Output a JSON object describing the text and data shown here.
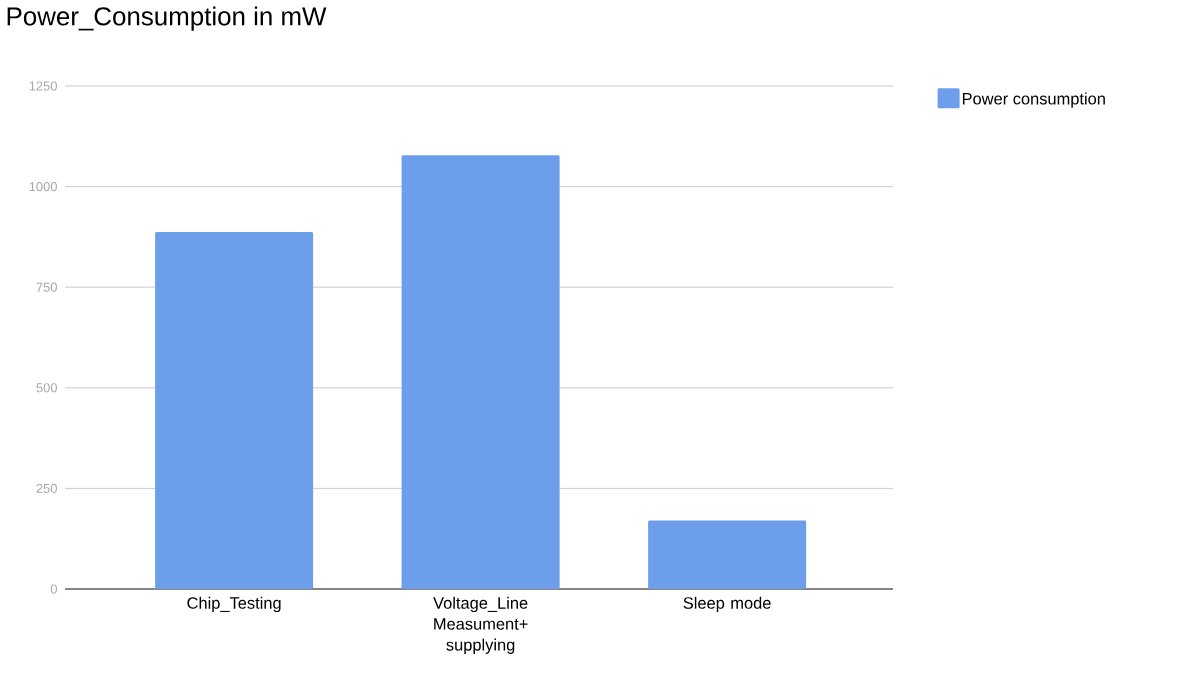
{
  "chart_data": {
    "type": "bar",
    "title": "Power_Consumption in mW",
    "categories": [
      "Chip_Testing",
      "Voltage_Line Measument+ supplying",
      "Sleep mode"
    ],
    "series": [
      {
        "name": "Power consumption",
        "color": "#6d9eeb",
        "values": [
          887,
          1078,
          170
        ]
      }
    ],
    "ylim": [
      0,
      1250
    ],
    "yticks": [
      0,
      250,
      500,
      750,
      1000,
      1250
    ],
    "grid": "y",
    "legend": "top right"
  }
}
